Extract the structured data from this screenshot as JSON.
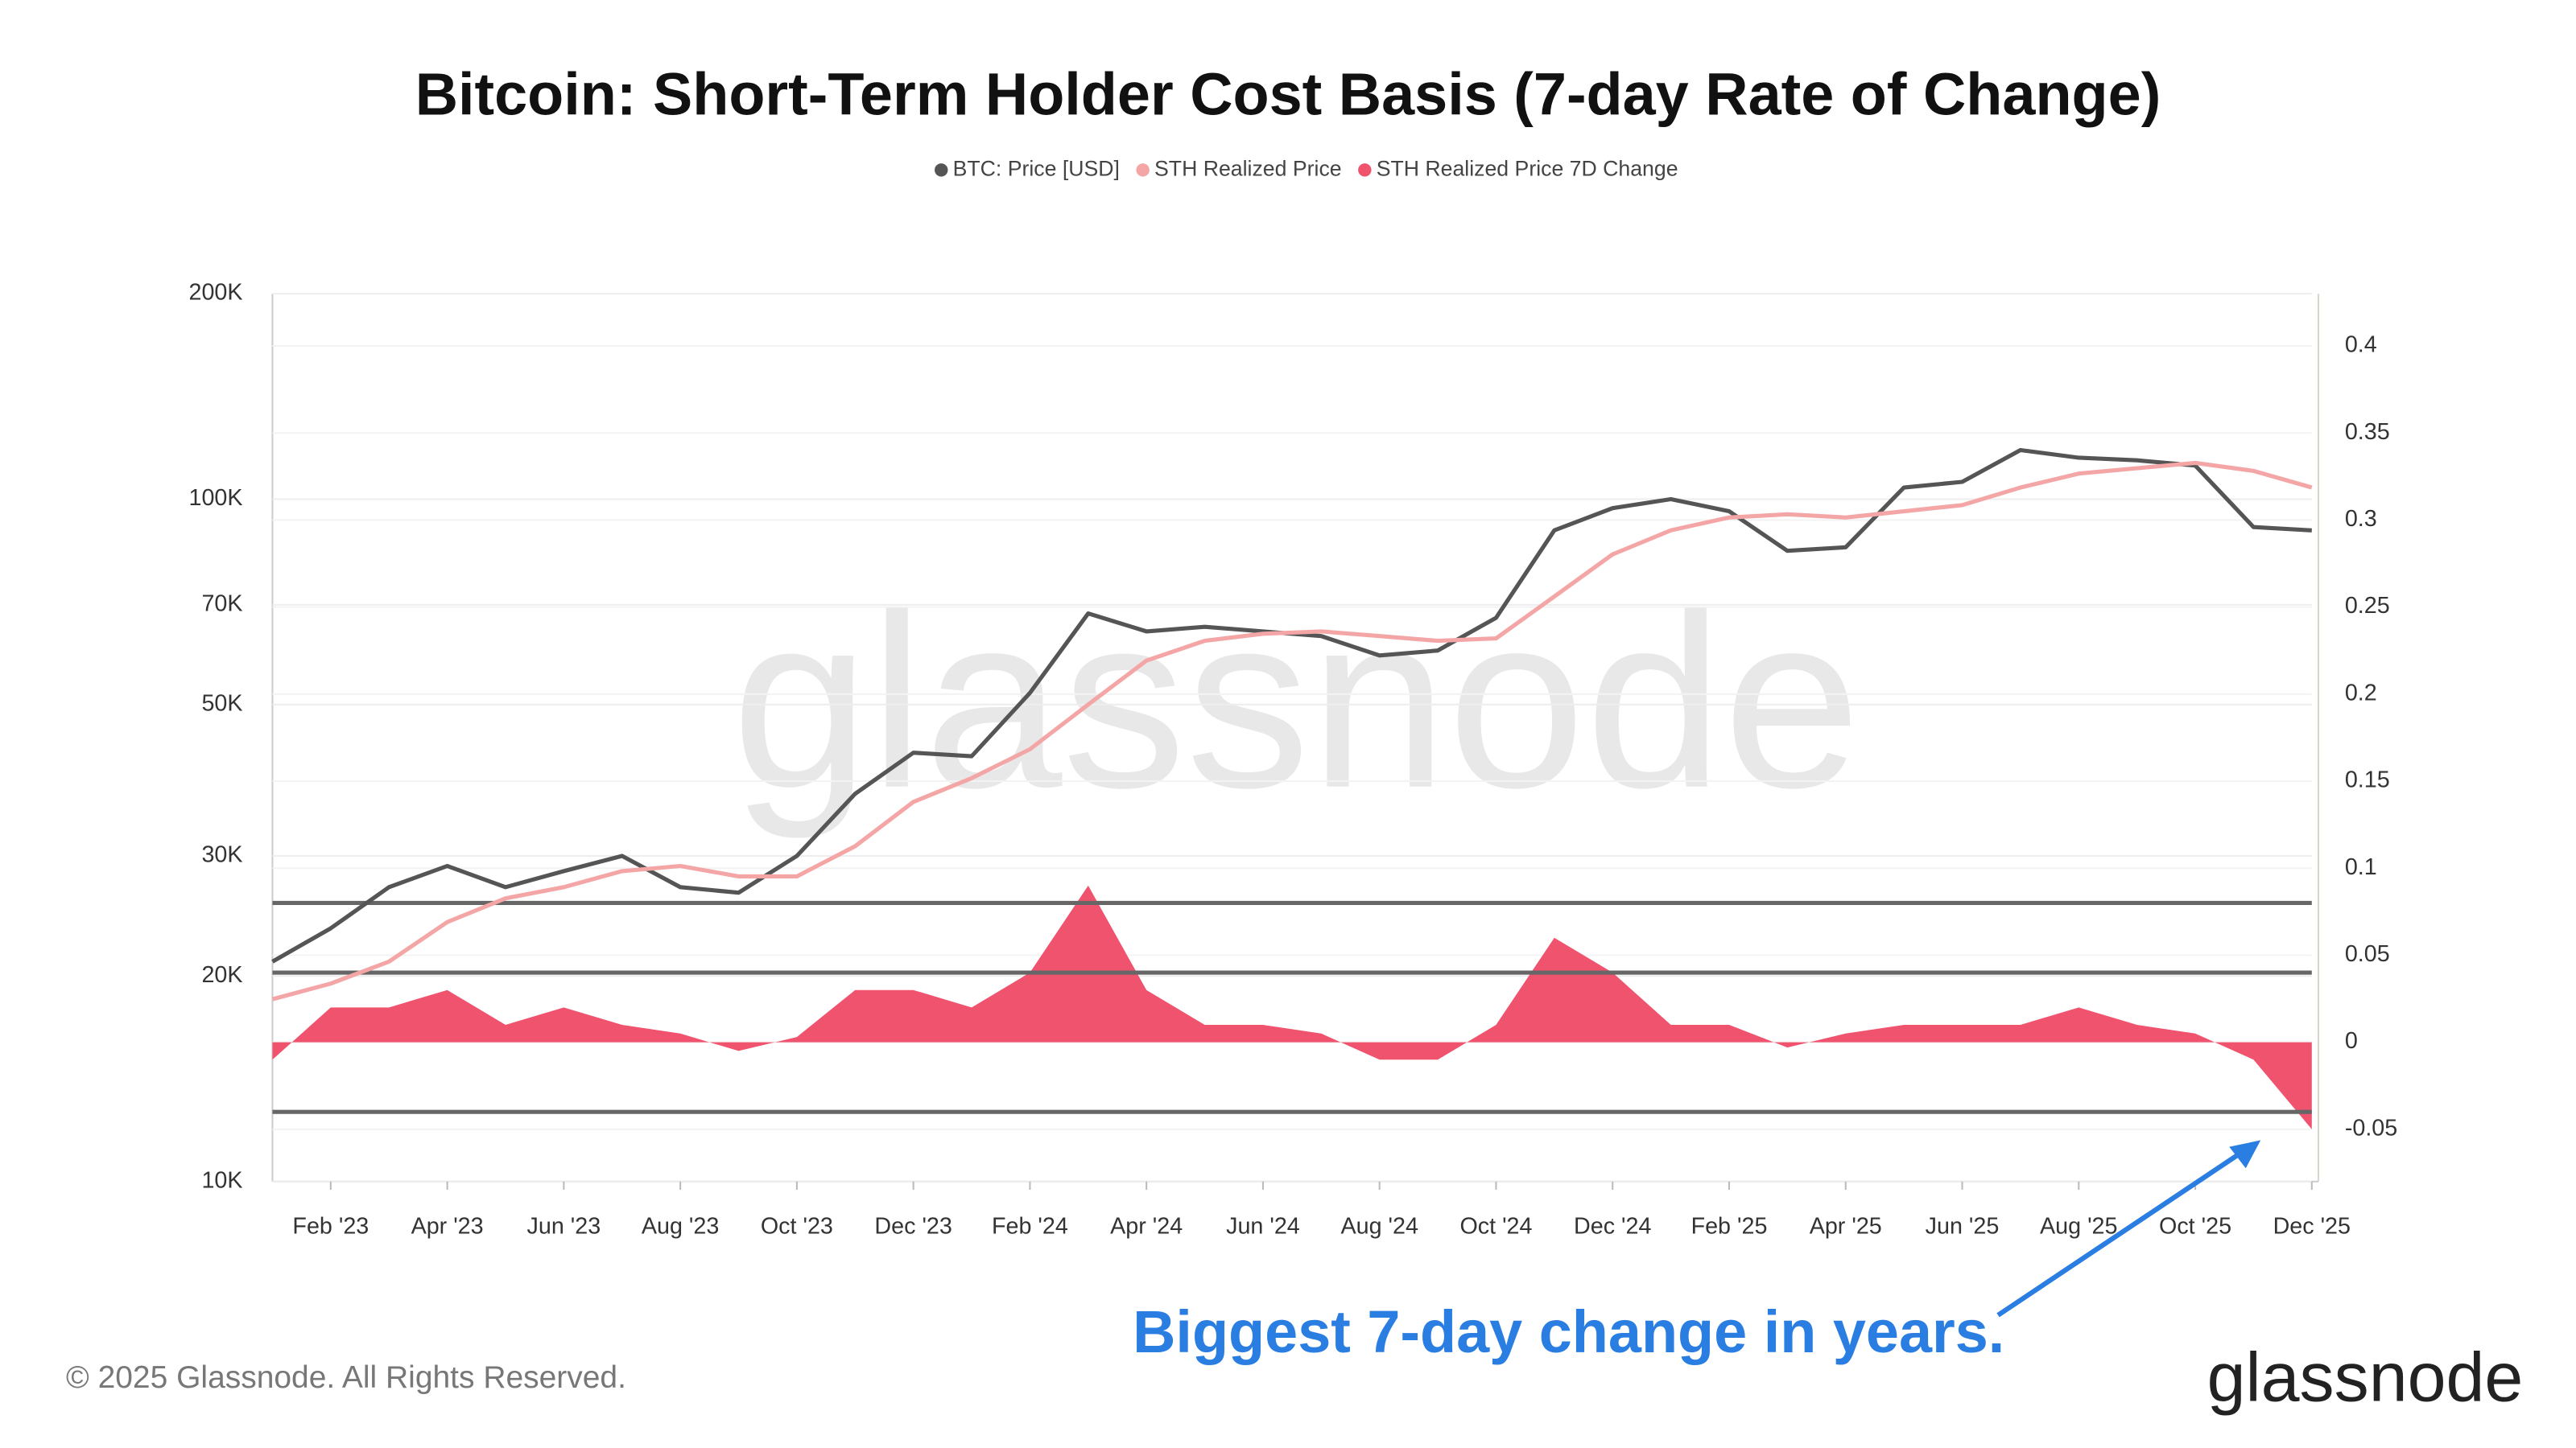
{
  "chart_data": {
    "type": "dual-axis-line-area",
    "title": "Bitcoin: Short-Term Holder Cost Basis (7-day Rate of Change)",
    "x": [
      "2023-01",
      "2023-02",
      "2023-03",
      "2023-04",
      "2023-05",
      "2023-06",
      "2023-07",
      "2023-08",
      "2023-09",
      "2023-10",
      "2023-11",
      "2023-12",
      "2024-01",
      "2024-02",
      "2024-03",
      "2024-04",
      "2024-05",
      "2024-06",
      "2024-07",
      "2024-08",
      "2024-09",
      "2024-10",
      "2024-11",
      "2024-12",
      "2025-01",
      "2025-02",
      "2025-03",
      "2025-04",
      "2025-05",
      "2025-06",
      "2025-07",
      "2025-08",
      "2025-09",
      "2025-10",
      "2025-11",
      "2025-12"
    ],
    "xlim": [
      "2023-01",
      "2025-12"
    ],
    "xticks": [
      {
        "value": "2023-02",
        "label": "Feb '23"
      },
      {
        "value": "2023-04",
        "label": "Apr '23"
      },
      {
        "value": "2023-06",
        "label": "Jun '23"
      },
      {
        "value": "2023-08",
        "label": "Aug '23"
      },
      {
        "value": "2023-10",
        "label": "Oct '23"
      },
      {
        "value": "2023-12",
        "label": "Dec '23"
      },
      {
        "value": "2024-02",
        "label": "Feb '24"
      },
      {
        "value": "2024-04",
        "label": "Apr '24"
      },
      {
        "value": "2024-06",
        "label": "Jun '24"
      },
      {
        "value": "2024-08",
        "label": "Aug '24"
      },
      {
        "value": "2024-10",
        "label": "Oct '24"
      },
      {
        "value": "2024-12",
        "label": "Dec '24"
      },
      {
        "value": "2025-02",
        "label": "Feb '25"
      },
      {
        "value": "2025-04",
        "label": "Apr '25"
      },
      {
        "value": "2025-06",
        "label": "Jun '25"
      },
      {
        "value": "2025-08",
        "label": "Aug '25"
      },
      {
        "value": "2025-10",
        "label": "Oct '25"
      },
      {
        "value": "2025-12",
        "label": "Dec '25"
      }
    ],
    "ylim": [
      10000,
      200000
    ],
    "log_scale": true,
    "yticks": [
      {
        "value": 10000,
        "label": "10K"
      },
      {
        "value": 20000,
        "label": "20K"
      },
      {
        "value": 30000,
        "label": "30K"
      },
      {
        "value": 50000,
        "label": "50K"
      },
      {
        "value": 70000,
        "label": "70K"
      },
      {
        "value": 100000,
        "label": "100K"
      },
      {
        "value": 200000,
        "label": "200K"
      }
    ],
    "y2lim": [
      -0.08,
      0.43
    ],
    "y2ticks": [
      -0.05,
      0,
      0.05,
      0.1,
      0.15,
      0.2,
      0.25,
      0.3,
      0.35,
      0.4
    ],
    "reference_lines": [
      0.08,
      0.04,
      -0.04
    ],
    "grid": true,
    "series": [
      {
        "name": "BTC: Price [USD]",
        "color": "#555555",
        "kind": "line",
        "values": [
          21000,
          23500,
          27000,
          29000,
          27000,
          28500,
          30000,
          27000,
          26500,
          30000,
          37000,
          42500,
          42000,
          52000,
          68000,
          64000,
          65000,
          64000,
          63000,
          59000,
          60000,
          67000,
          90000,
          97000,
          100000,
          96000,
          84000,
          85000,
          104000,
          106000,
          118000,
          115000,
          114000,
          112000,
          91000,
          90000
        ]
      },
      {
        "name": "STH Realized Price",
        "color": "#f4a6a6",
        "kind": "line",
        "values": [
          18500,
          19500,
          21000,
          24000,
          26000,
          27000,
          28500,
          29000,
          28000,
          28000,
          31000,
          36000,
          39000,
          43000,
          50000,
          58000,
          62000,
          63500,
          64000,
          63000,
          62000,
          62500,
          72000,
          83000,
          90000,
          94000,
          95000,
          94000,
          96000,
          98000,
          104000,
          109000,
          111000,
          113000,
          110000,
          104000
        ]
      },
      {
        "name": "STH Realized Price 7D Change",
        "color": "#f0536e",
        "kind": "area",
        "axis": "y2",
        "values": [
          -0.01,
          0.02,
          0.02,
          0.03,
          0.01,
          0.02,
          0.01,
          0.005,
          -0.005,
          0.003,
          0.03,
          0.03,
          0.02,
          0.04,
          0.09,
          0.03,
          0.01,
          0.01,
          0.005,
          -0.01,
          -0.01,
          0.01,
          0.06,
          0.04,
          0.01,
          0.01,
          -0.003,
          0.005,
          0.01,
          0.01,
          0.01,
          0.02,
          0.01,
          0.005,
          -0.01,
          -0.05
        ]
      }
    ],
    "annotation": "Biggest 7-day change in years.",
    "copyright": "© 2025 Glassnode. All Rights Reserved.",
    "watermark": "glassnode",
    "logo": "glassnode"
  }
}
